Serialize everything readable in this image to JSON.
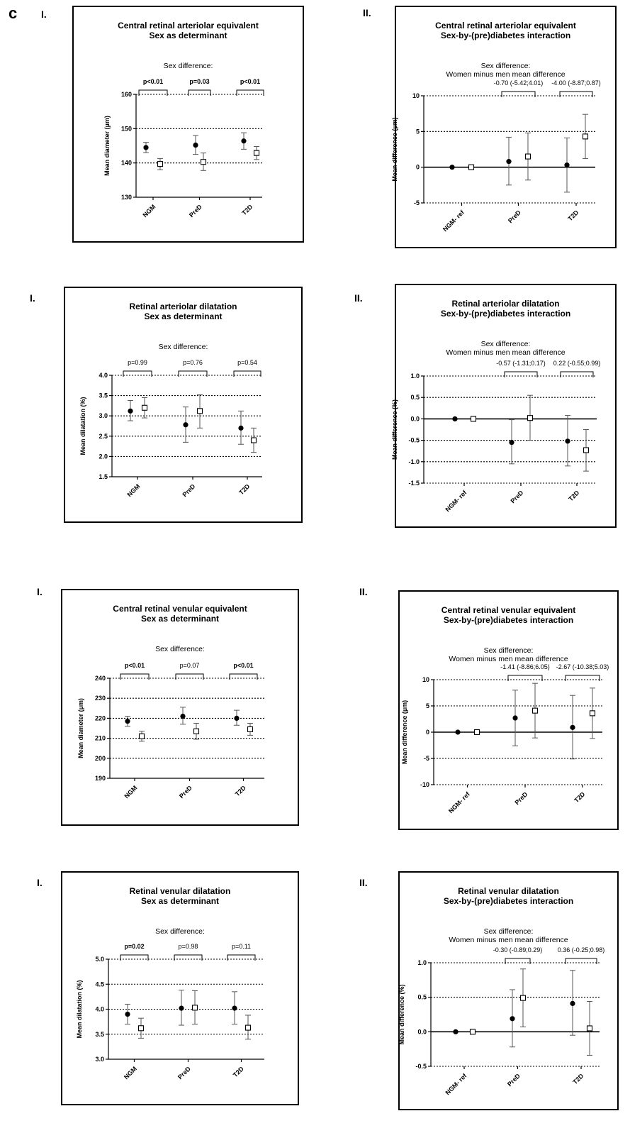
{
  "figure_letter": "c",
  "colors": {
    "women_marker": "#000000",
    "men_marker": "#ffffff",
    "axis": "#000000"
  },
  "chart_data": [
    {
      "id": "p1",
      "type": "scatter",
      "panel_label": "I.",
      "title": [
        "Central retinal arteriolar equivalent",
        "Sex as determinant"
      ],
      "subtitle": [
        "Sex difference:"
      ],
      "ylabel": "Mean diameter (µm)",
      "ylim": [
        130,
        160
      ],
      "yticks": [
        130,
        140,
        150,
        160
      ],
      "gridlines": [
        140,
        150,
        160
      ],
      "zero_line": null,
      "categories": [
        "NGM",
        "PreD",
        "T2D"
      ],
      "annotations": [
        {
          "text": "p<0.01",
          "bold": true
        },
        {
          "text": "p=0.03",
          "bold": true
        },
        {
          "text": "p<0.01",
          "bold": true
        }
      ],
      "series": [
        {
          "name": "",
          "marker": "circle",
          "values": [
            144.5,
            145.2,
            146.4
          ],
          "lower": [
            143.0,
            142.5,
            144.0
          ],
          "upper": [
            146.0,
            148.0,
            148.8
          ]
        },
        {
          "name": "",
          "marker": "square",
          "values": [
            139.7,
            140.3,
            142.9
          ],
          "lower": [
            138.0,
            137.8,
            141.0
          ],
          "upper": [
            141.3,
            142.9,
            144.8
          ]
        }
      ]
    },
    {
      "id": "p2",
      "type": "scatter",
      "panel_label": "II.",
      "title": [
        "Central retinal arteriolar equivalent",
        "Sex-by-(pre)diabetes interaction"
      ],
      "subtitle": [
        "Sex difference:",
        "Women minus men mean difference"
      ],
      "ylabel": "Mean difference (µm)",
      "ylim": [
        -5,
        10
      ],
      "yticks": [
        -5,
        0,
        5,
        10
      ],
      "gridlines": [
        -5,
        5,
        10
      ],
      "zero_line": 0,
      "categories": [
        "NGM- ref",
        "PreD",
        "T2D"
      ],
      "annotations": [
        {
          "text": "",
          "bold": false
        },
        {
          "text": "-0.70 (-5.42;4.01)",
          "bold": false
        },
        {
          "text": "-4.00 (-8.87;0.87)",
          "bold": false
        }
      ],
      "series": [
        {
          "name": "",
          "marker": "circle",
          "values": [
            0,
            0.8,
            0.3
          ],
          "lower": [
            null,
            -2.5,
            -3.5
          ],
          "upper": [
            null,
            4.2,
            4.1
          ]
        },
        {
          "name": "",
          "marker": "square",
          "values": [
            0,
            1.5,
            4.3
          ],
          "lower": [
            null,
            -1.8,
            1.2
          ],
          "upper": [
            null,
            4.8,
            7.4
          ]
        }
      ]
    },
    {
      "id": "p3",
      "type": "scatter",
      "panel_label": "I.",
      "title": [
        "Retinal arteriolar dilatation",
        "Sex as determinant"
      ],
      "subtitle": [
        "Sex difference:"
      ],
      "ylabel": "Mean dilatation (%)",
      "ylim": [
        1.5,
        4.0
      ],
      "yticks": [
        1.5,
        2.0,
        2.5,
        3.0,
        3.5,
        4.0
      ],
      "gridlines": [
        2.0,
        2.5,
        3.0,
        3.5,
        4.0
      ],
      "zero_line": null,
      "categories": [
        "NGM",
        "PreD",
        "T2D"
      ],
      "annotations": [
        {
          "text": "p=0.99",
          "bold": false
        },
        {
          "text": "p=0.76",
          "bold": false
        },
        {
          "text": "p=0.54",
          "bold": false
        }
      ],
      "series": [
        {
          "name": "",
          "marker": "circle",
          "values": [
            3.12,
            2.78,
            2.7
          ],
          "lower": [
            2.88,
            2.35,
            2.3
          ],
          "upper": [
            3.38,
            3.22,
            3.12
          ]
        },
        {
          "name": "",
          "marker": "square",
          "values": [
            3.2,
            3.12,
            2.4
          ],
          "lower": [
            2.95,
            2.7,
            2.1
          ],
          "upper": [
            3.45,
            3.52,
            2.7
          ]
        }
      ]
    },
    {
      "id": "p4",
      "type": "scatter",
      "panel_label": "II.",
      "title": [
        "Retinal arteriolar dilatation",
        "Sex-by-(pre)diabetes interaction"
      ],
      "subtitle": [
        "Sex difference:",
        "Women minus men mean difference"
      ],
      "ylabel": "Mean difference (%)",
      "ylim": [
        -1.5,
        1.0
      ],
      "yticks": [
        -1.5,
        -1.0,
        -0.5,
        0.0,
        0.5,
        1.0
      ],
      "gridlines": [
        -1.5,
        -1.0,
        -0.5,
        0.5,
        1.0
      ],
      "zero_line": 0,
      "categories": [
        "NGM- ref",
        "PreD",
        "T2D"
      ],
      "annotations": [
        {
          "text": "",
          "bold": false
        },
        {
          "text": "-0.57 (-1.31;0.17)",
          "bold": false
        },
        {
          "text": "0.22 (-0.55;0.99)",
          "bold": false
        }
      ],
      "series": [
        {
          "name": "",
          "marker": "circle",
          "values": [
            0,
            -0.55,
            -0.52
          ],
          "lower": [
            null,
            -1.05,
            -1.1
          ],
          "upper": [
            null,
            -0.02,
            0.08
          ]
        },
        {
          "name": "",
          "marker": "square",
          "values": [
            0,
            0.02,
            -0.73
          ],
          "lower": [
            null,
            -0.5,
            -1.22
          ],
          "upper": [
            null,
            0.55,
            -0.25
          ]
        }
      ]
    },
    {
      "id": "p5",
      "type": "scatter",
      "panel_label": "I.",
      "title": [
        "Central retinal venular equivalent",
        "Sex as determinant"
      ],
      "subtitle": [
        "Sex difference:"
      ],
      "ylabel": "Mean diameter (µm)",
      "ylim": [
        190,
        240
      ],
      "yticks": [
        190,
        200,
        210,
        220,
        230,
        240
      ],
      "gridlines": [
        200,
        210,
        220,
        230,
        240
      ],
      "zero_line": null,
      "categories": [
        "NGM",
        "PreD",
        "T2D"
      ],
      "annotations": [
        {
          "text": "p<0.01",
          "bold": true
        },
        {
          "text": "p=0.07",
          "bold": false
        },
        {
          "text": "p<0.01",
          "bold": true
        }
      ],
      "series": [
        {
          "name": "",
          "marker": "circle",
          "values": [
            218.5,
            221.0,
            220.0
          ],
          "lower": [
            216.0,
            217.0,
            216.5
          ],
          "upper": [
            221.0,
            225.5,
            224.0
          ]
        },
        {
          "name": "",
          "marker": "square",
          "values": [
            211.0,
            213.5,
            214.5
          ],
          "lower": [
            208.5,
            209.5,
            211.5
          ],
          "upper": [
            213.5,
            217.5,
            217.5
          ]
        }
      ]
    },
    {
      "id": "p6",
      "type": "scatter",
      "panel_label": "II.",
      "title": [
        "Central retinal venular equivalent",
        "Sex-by-(pre)diabetes interaction"
      ],
      "subtitle": [
        "Sex difference:",
        "Women minus men mean difference"
      ],
      "ylabel": "Mean difference (µm)",
      "ylim": [
        -10,
        10
      ],
      "yticks": [
        -10,
        -5,
        0,
        5,
        10
      ],
      "gridlines": [
        -10,
        -5,
        5,
        10
      ],
      "zero_line": 0,
      "categories": [
        "NGM- ref",
        "PreD",
        "T2D"
      ],
      "annotations": [
        {
          "text": "",
          "bold": false
        },
        {
          "text": "-1.41 (-8.86;6.05)",
          "bold": false
        },
        {
          "text": "-2.67 (-10.38;5.03)",
          "bold": false
        }
      ],
      "series": [
        {
          "name": "",
          "marker": "circle",
          "values": [
            0,
            2.7,
            0.9
          ],
          "lower": [
            null,
            -2.6,
            -5.1
          ],
          "upper": [
            null,
            8.0,
            7.0
          ]
        },
        {
          "name": "",
          "marker": "square",
          "values": [
            0,
            4.1,
            3.6
          ],
          "lower": [
            null,
            -1.1,
            -1.2
          ],
          "upper": [
            null,
            9.3,
            8.4
          ]
        }
      ]
    },
    {
      "id": "p7",
      "type": "scatter",
      "panel_label": "I.",
      "title": [
        "Retinal venular dilatation",
        "Sex as determinant"
      ],
      "subtitle": [
        "Sex difference:"
      ],
      "ylabel": "Mean dilatation (%)",
      "ylim": [
        3.0,
        5.0
      ],
      "yticks": [
        3.0,
        3.5,
        4.0,
        4.5,
        5.0
      ],
      "gridlines": [
        3.5,
        4.0,
        4.5,
        5.0
      ],
      "zero_line": null,
      "categories": [
        "NGM",
        "PreD",
        "T2D"
      ],
      "annotations": [
        {
          "text": "p=0.02",
          "bold": true
        },
        {
          "text": "p=0.98",
          "bold": false
        },
        {
          "text": "p=0.11",
          "bold": false
        }
      ],
      "series": [
        {
          "name": "",
          "marker": "circle",
          "values": [
            3.9,
            4.02,
            4.02
          ],
          "lower": [
            3.7,
            3.68,
            3.7
          ],
          "upper": [
            4.1,
            4.38,
            4.35
          ]
        },
        {
          "name": "",
          "marker": "square",
          "values": [
            3.62,
            4.03,
            3.63
          ],
          "lower": [
            3.42,
            3.7,
            3.4
          ],
          "upper": [
            3.82,
            4.37,
            3.88
          ]
        }
      ]
    },
    {
      "id": "p8",
      "type": "scatter",
      "panel_label": "II.",
      "title": [
        "Retinal venular dilatation",
        "Sex-by-(pre)diabetes interaction"
      ],
      "subtitle": [
        "Sex difference:",
        "Women minus men mean difference"
      ],
      "ylabel": "Mean difference (%)",
      "ylim": [
        -0.5,
        1.0
      ],
      "yticks": [
        -0.5,
        0.0,
        0.5,
        1.0
      ],
      "gridlines": [
        -0.5,
        0.5,
        1.0
      ],
      "zero_line": 0,
      "categories": [
        "NGM- ref",
        "PreD",
        "T2D"
      ],
      "annotations": [
        {
          "text": "",
          "bold": false
        },
        {
          "text": "-0.30 (-0.89;0.29)",
          "bold": false
        },
        {
          "text": "0.36 (-0.25;0.98)",
          "bold": false
        }
      ],
      "series": [
        {
          "name": "",
          "marker": "circle",
          "values": [
            0,
            0.19,
            0.41
          ],
          "lower": [
            null,
            -0.22,
            -0.05
          ],
          "upper": [
            null,
            0.61,
            0.89
          ]
        },
        {
          "name": "",
          "marker": "square",
          "values": [
            0,
            0.49,
            0.05
          ],
          "lower": [
            null,
            0.07,
            -0.34
          ],
          "upper": [
            null,
            0.91,
            0.44
          ]
        }
      ]
    }
  ]
}
